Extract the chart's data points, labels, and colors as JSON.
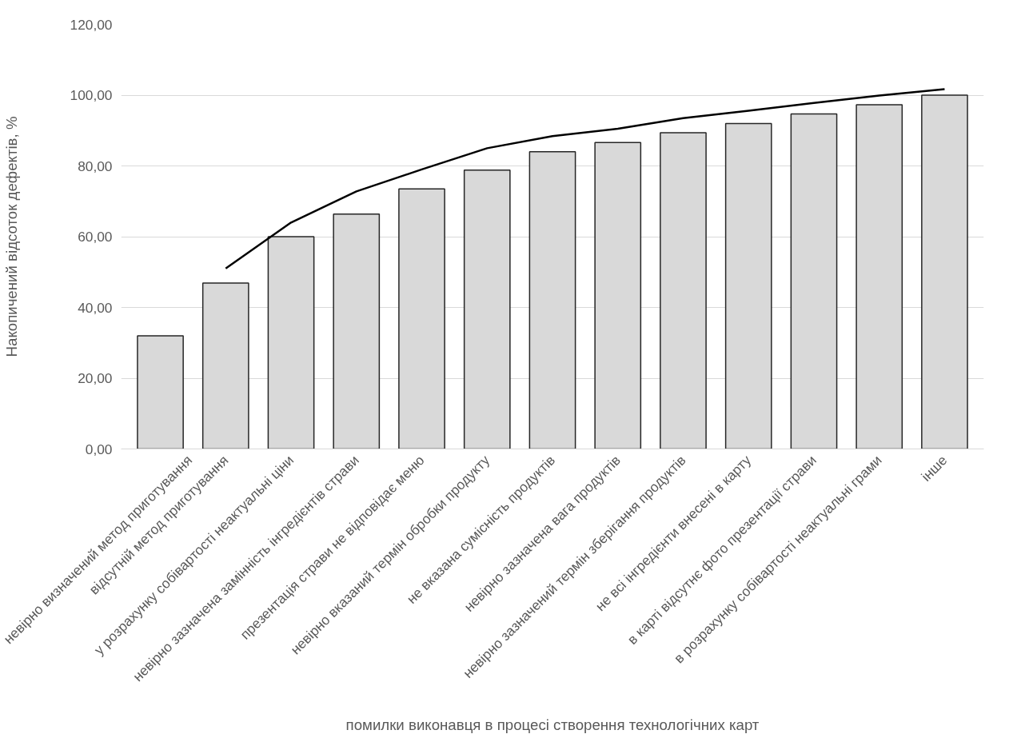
{
  "chart_data": {
    "type": "bar",
    "xlabel": "помилки виконавця в процесі створення технологічних карт",
    "ylabel": "Накопичений відсоток дефектів, %",
    "categories": [
      "невірно визначений метод приготування",
      "відсутній метод приготування",
      "у розрахунку собівартості неактуальні ціни",
      "невірно зазначена замінність інгредієнтів страви",
      "презентація страви не відповідає меню",
      "невірно вказаний термін обробки продукту",
      "не вказана сумісність продуктів",
      "невірно зазначена вага продуктів",
      "невірно зазначений термін зберігання продуктів",
      "не всі інгредієнти внесені в карту",
      "в карті відсутнє фото презентації страви",
      "в розрахунку собівартості неактуальні грами",
      "інше"
    ],
    "series": [
      {
        "color": "#d9d9d9",
        "values": [
          32.0,
          46.9,
          60.0,
          66.4,
          73.5,
          78.8,
          84.0,
          86.6,
          89.4,
          92.0,
          94.7,
          97.3,
          100.0
        ]
      },
      {
        "type": "line",
        "color": "#000000",
        "values": [
          null,
          51,
          64,
          72.8,
          79,
          85,
          88.4,
          90.5,
          93.5,
          95.6,
          97.8,
          99.9,
          101.7
        ]
      }
    ],
    "ylim": [
      0,
      120
    ],
    "yticks": [
      {
        "value": 0,
        "label": "0,00"
      },
      {
        "value": 20,
        "label": "20,00"
      },
      {
        "value": 40,
        "label": "40,00"
      },
      {
        "value": 60,
        "label": "60,00"
      },
      {
        "value": 80,
        "label": "80,00"
      },
      {
        "value": 100,
        "label": "100,00"
      },
      {
        "value": 120,
        "label": "120,00"
      }
    ],
    "grid": "y"
  }
}
